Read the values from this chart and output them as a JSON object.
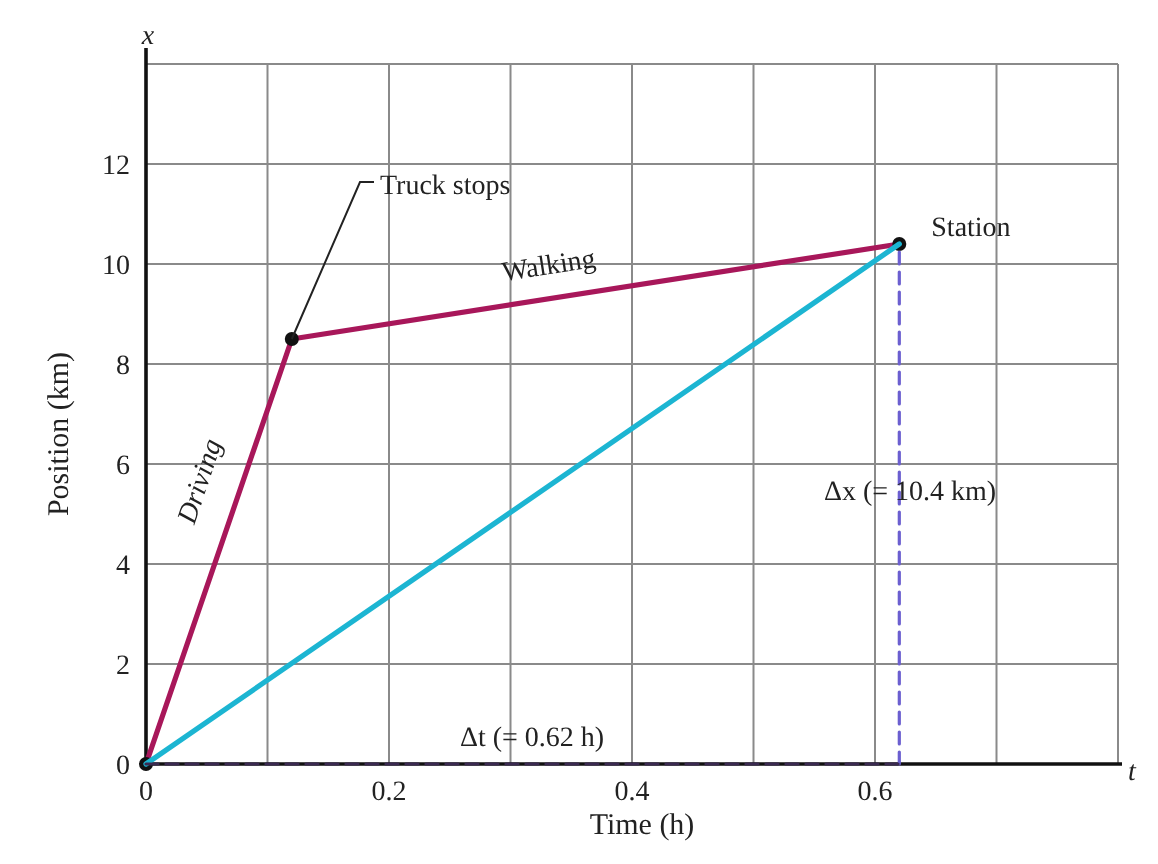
{
  "chart_data": {
    "type": "line",
    "xlabel": "Time (h)",
    "ylabel": "Position (km)",
    "xlim": [
      0,
      0.8
    ],
    "ylim": [
      0,
      14
    ],
    "xticks": [
      0,
      {
        "value": 0.1,
        "label": null
      },
      0.2,
      {
        "value": 0.3,
        "label": null
      },
      0.4,
      {
        "value": 0.5,
        "label": null
      },
      0.6,
      {
        "value": 0.7,
        "label": null
      },
      {
        "value": 0.8,
        "label": null
      }
    ],
    "yticks": [
      0,
      2,
      4,
      6,
      8,
      10,
      12,
      {
        "value": 14,
        "label": null
      }
    ],
    "grid": true,
    "series": [
      {
        "color": "#a8175a",
        "x": [
          0,
          0.12,
          0.62
        ],
        "values": [
          0,
          8.5,
          10.4
        ],
        "marker": "circle",
        "line_style": "solid"
      },
      {
        "color": "#1cb5d2",
        "x": [
          0,
          0.62
        ],
        "values": [
          0,
          10.4
        ],
        "marker": "none",
        "line_style": "solid"
      },
      {
        "color": "#6b5fd0",
        "x": [
          0.62,
          0.62
        ],
        "values": [
          0,
          10.4
        ],
        "marker": "none",
        "line_style": "dashed"
      },
      {
        "color": "#3a2a50",
        "x": [
          0,
          0.62
        ],
        "values": [
          0,
          0
        ],
        "marker": "none",
        "line_style": "dashed"
      }
    ],
    "annotations": [
      {
        "text": "Truck stops",
        "x": 0.12,
        "y": 8.5
      },
      {
        "text": "Station",
        "x": 0.62,
        "y": 10.4
      },
      "Walking",
      "Driving",
      "Δx (= 10.4 km)",
      "Δt (= 0.62 h)",
      "x",
      "t"
    ]
  }
}
